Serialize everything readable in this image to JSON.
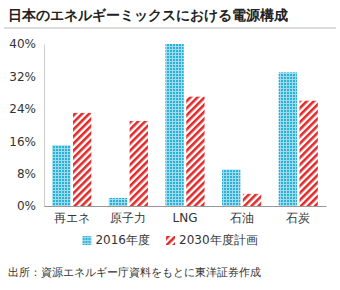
{
  "chart_data": {
    "type": "bar",
    "title": "日本のエネルギーミックスにおける電源構成",
    "categories": [
      "再エネ",
      "原子力",
      "LNG",
      "石油",
      "石炭"
    ],
    "series": [
      {
        "name": "2016年度",
        "color": "#2bb0d6",
        "values": [
          15,
          2,
          40,
          9,
          33
        ]
      },
      {
        "name": "2030年度計画",
        "color": "#e02a2a",
        "values": [
          23,
          21,
          27,
          3,
          26
        ]
      }
    ],
    "ylim": [
      0,
      40
    ],
    "yticks": [
      {
        "value": 0,
        "label": "0%"
      },
      {
        "value": 8,
        "label": "8%"
      },
      {
        "value": 16,
        "label": "16%"
      },
      {
        "value": 24,
        "label": "24%"
      },
      {
        "value": 32,
        "label": "32%"
      },
      {
        "value": 40,
        "label": "40%"
      }
    ],
    "grid": false,
    "legend": "bottom",
    "source": "出所：資源エネルギー庁資料をもとに東洋証券作成"
  }
}
